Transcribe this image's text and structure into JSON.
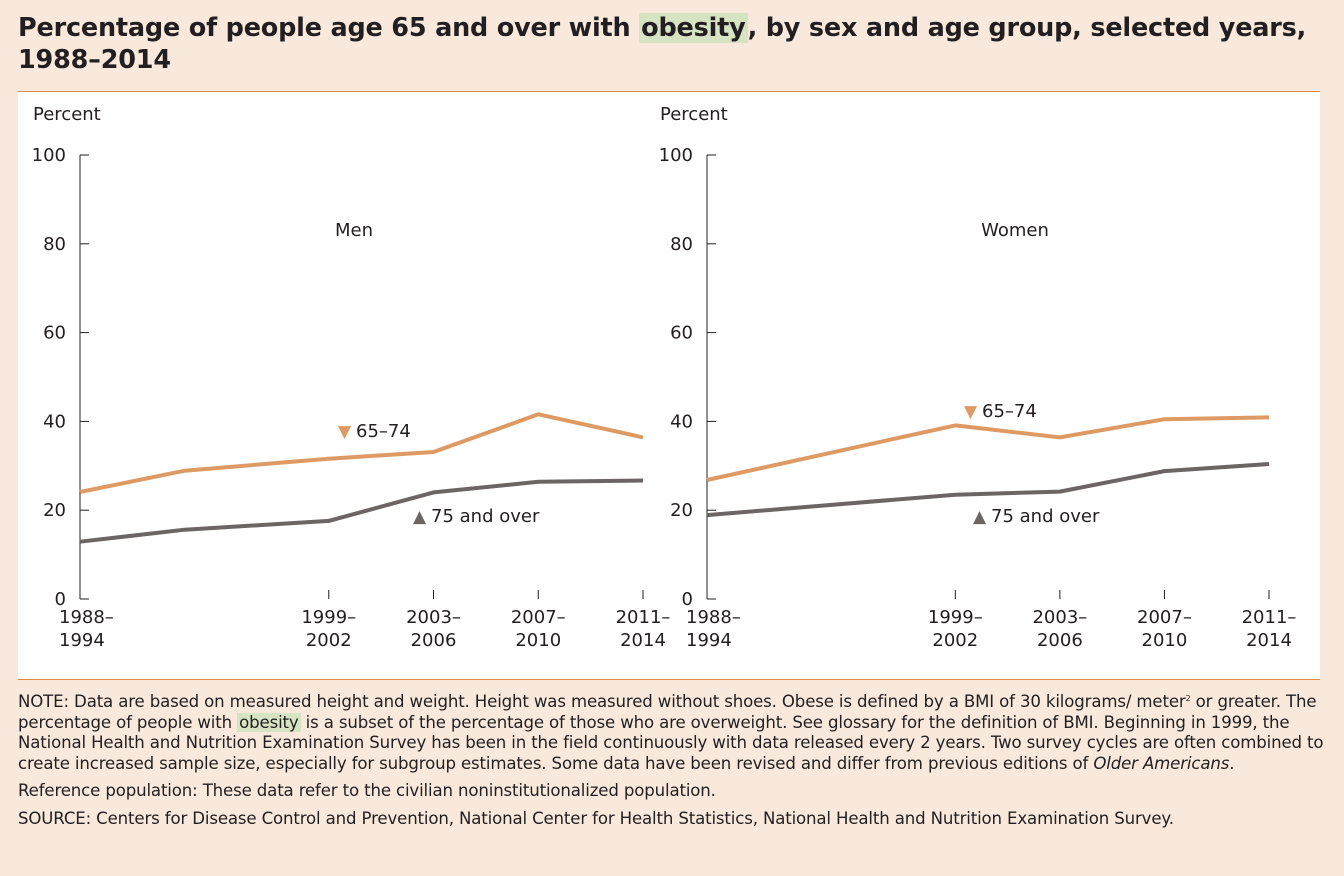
{
  "title": {
    "before": "Percentage of people age 65 and over with ",
    "highlight": "obesity",
    "after": ", by sex and age group, selected years, 1988–2014"
  },
  "colors": {
    "page_background": "#f8e9dc",
    "panel_background": "#ffffff",
    "rule": "#e08a4c",
    "highlight": "#d6e4c4",
    "series_65_74": "#de9a63",
    "series_75_over": "#6b6563"
  },
  "chart_data": [
    {
      "type": "line",
      "title": "Men",
      "ylabel": "Percent",
      "ylim": [
        0,
        100
      ],
      "yticks": [
        "0",
        "20",
        "40",
        "60",
        "80",
        "100"
      ],
      "x": [
        1991,
        1995,
        2000.5,
        2004.5,
        2008.5,
        2012.5
      ],
      "x_tick_labels": [
        [
          "1988–",
          "1994"
        ],
        [
          "1999–",
          "2002"
        ],
        [
          "2003–",
          "2006"
        ],
        [
          "2007–",
          "2010"
        ],
        [
          "2011–",
          "2014"
        ]
      ],
      "x_tick_positions": [
        1991,
        2000.5,
        2004.5,
        2008.5,
        2012.5
      ],
      "series": [
        {
          "name": "65–74",
          "marker": "▼",
          "values": [
            24.1,
            28.9,
            31.6,
            33.1,
            41.6,
            36.4
          ]
        },
        {
          "name": "75 and over",
          "marker": "▲",
          "values": [
            12.9,
            15.6,
            17.6,
            24.0,
            26.4,
            26.7
          ]
        }
      ],
      "grid": false
    },
    {
      "type": "line",
      "title": "Women",
      "ylabel": "Percent",
      "ylim": [
        0,
        100
      ],
      "yticks": [
        "0",
        "20",
        "40",
        "60",
        "80",
        "100"
      ],
      "x": [
        1991,
        2000.5,
        2004.5,
        2008.5,
        2012.5
      ],
      "x_tick_labels": [
        [
          "1988–",
          "1994"
        ],
        [
          "1999–",
          "2002"
        ],
        [
          "2003–",
          "2006"
        ],
        [
          "2007–",
          "2010"
        ],
        [
          "2011–",
          "2014"
        ]
      ],
      "x_tick_positions": [
        1991,
        2000.5,
        2004.5,
        2008.5,
        2012.5
      ],
      "series": [
        {
          "name": "65–74",
          "marker": "▼",
          "values": [
            26.8,
            39.1,
            36.4,
            40.5,
            40.9
          ]
        },
        {
          "name": "75 and over",
          "marker": "▲",
          "values": [
            18.9,
            23.5,
            24.2,
            28.8,
            30.4
          ]
        }
      ],
      "grid": false
    }
  ],
  "note": {
    "line1_a": "NOTE: Data are based on measured height and weight. Height was measured without shoes. Obese is defined by a BMI of 30 kilograms/ meter",
    "sup": "2",
    "line1_b": " or greater. The percentage of people with ",
    "highlight": "obesity",
    "line1_c": " is a subset of the percentage of those who are overweight. See glossary for the definition of BMI. Beginning in 1999, the National Health and Nutrition Examination Survey has been in the field continuously with data released every 2 years. Two survey cycles are often combined to create increased sample size, especially for subgroup estimates. Some data have been revised and differ from previous editions of ",
    "italic": "Older Americans",
    "line1_d": ".",
    "reference": "Reference population: These data refer to the civilian noninstitutionalized population.",
    "source": "SOURCE: Centers for Disease Control and Prevention, National Center for Health Statistics, National Health and Nutrition Examination Survey."
  }
}
